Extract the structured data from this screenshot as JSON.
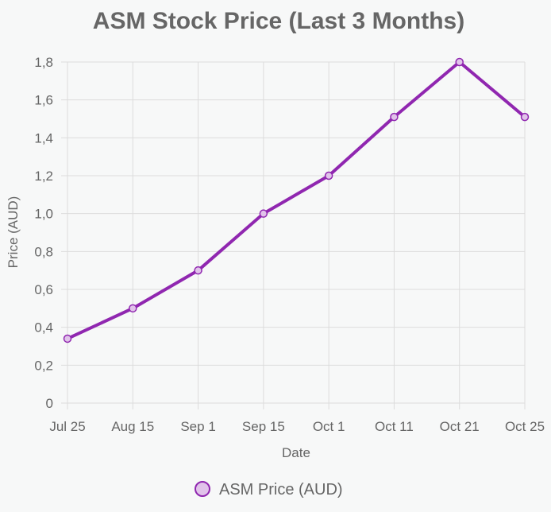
{
  "chart_data": {
    "type": "line",
    "title": "ASM Stock Price (Last 3 Months)",
    "xlabel": "Date",
    "ylabel": "Price (AUD)",
    "categories": [
      "Jul 25",
      "Aug 15",
      "Sep 1",
      "Sep 15",
      "Oct 1",
      "Oct 11",
      "Oct 21",
      "Oct 25"
    ],
    "series": [
      {
        "name": "ASM Price (AUD)",
        "values": [
          0.34,
          0.5,
          0.7,
          1.0,
          1.2,
          1.51,
          1.8,
          1.51
        ],
        "color": "#9027b0",
        "point_fill": "#e1c3ea"
      }
    ],
    "ylim": [
      0,
      1.8
    ],
    "yticks": [
      "0",
      "0,2",
      "0,4",
      "0,6",
      "0,8",
      "1,0",
      "1,2",
      "1,4",
      "1,6",
      "1,8"
    ],
    "grid": true,
    "legend": "bottom"
  }
}
